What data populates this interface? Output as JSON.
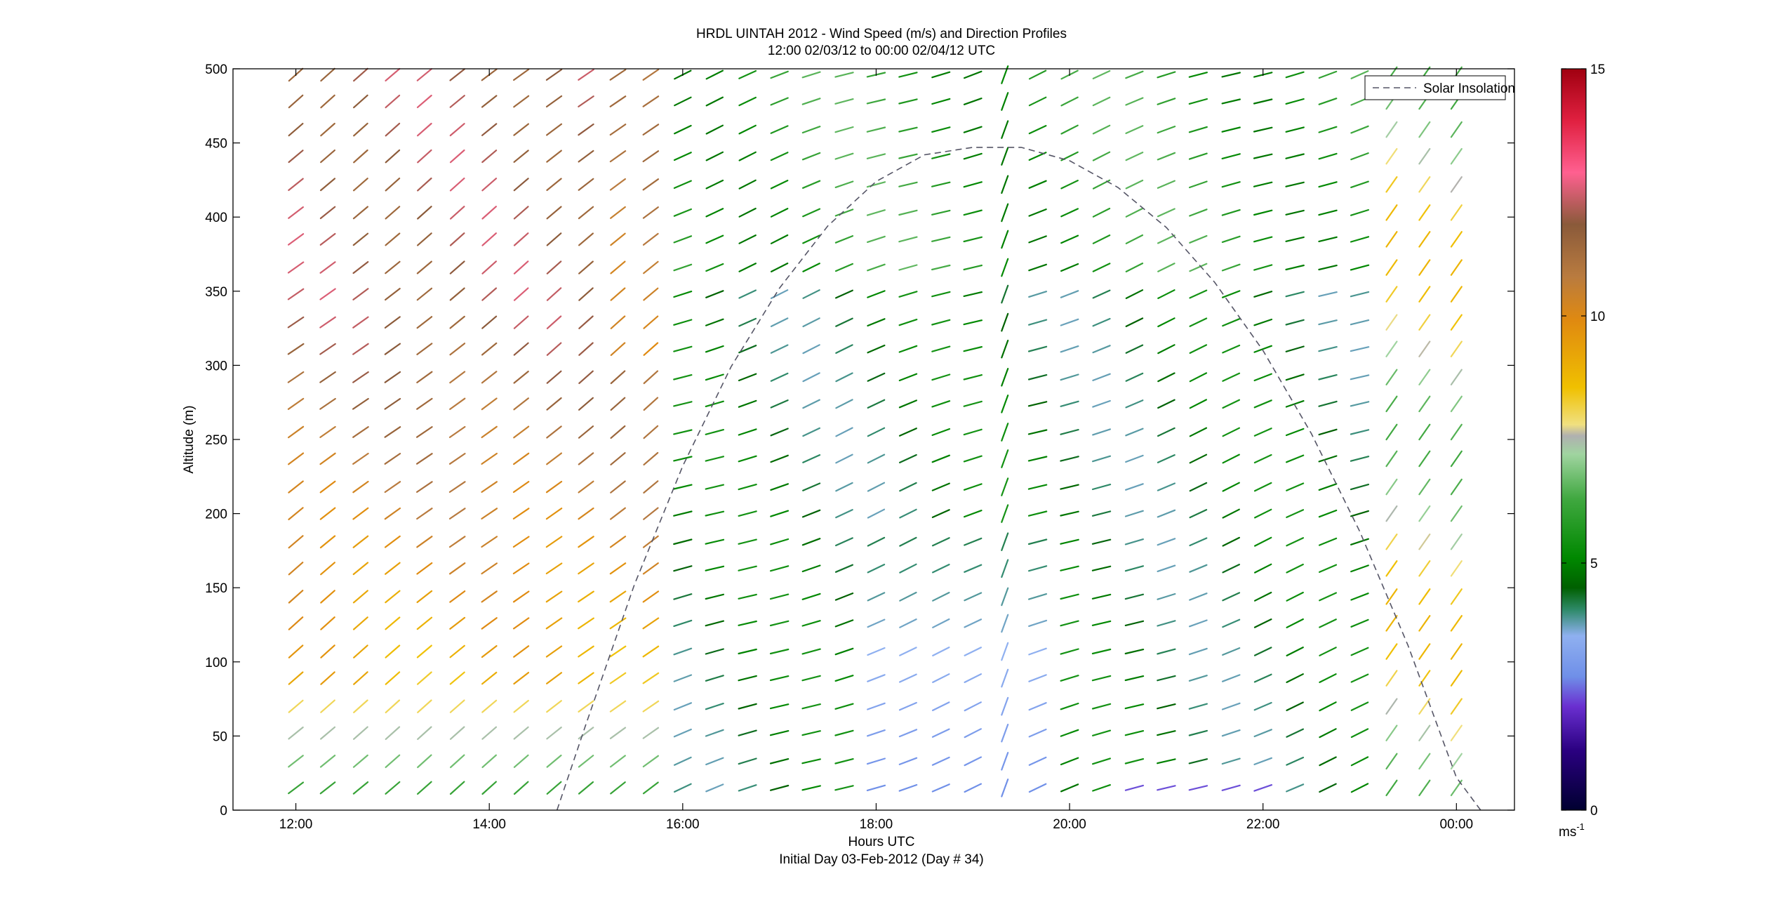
{
  "chart_data": {
    "type": "wind-profile",
    "title_line1": "HRDL UINTAH 2012 - Wind Speed (m/s) and Direction Profiles",
    "title_line2": "12:00 02/03/12 to 00:00 02/04/12  UTC",
    "xlabel": "Hours UTC",
    "xlabel_sub": "Initial Day 03-Feb-2012 (Day # 34)",
    "ylabel": "Altitude (m)",
    "x_ticks": [
      {
        "hour": 12,
        "label": "12:00"
      },
      {
        "hour": 14,
        "label": "14:00"
      },
      {
        "hour": 16,
        "label": "16:00"
      },
      {
        "hour": 18,
        "label": "18:00"
      },
      {
        "hour": 20,
        "label": "20:00"
      },
      {
        "hour": 22,
        "label": "22:00"
      },
      {
        "hour": 24,
        "label": "00:00"
      }
    ],
    "xlim_hours": [
      11.35,
      24.6
    ],
    "y_ticks": [
      0,
      50,
      100,
      150,
      200,
      250,
      300,
      350,
      400,
      450,
      500
    ],
    "ylim": [
      0,
      500
    ],
    "grid": false,
    "legend": {
      "position": "top-right",
      "entries": [
        "Solar Insolation"
      ]
    },
    "colorbar": {
      "min": 0,
      "max": 15,
      "ticks": [
        0,
        5,
        10,
        15
      ],
      "unit_label": "ms",
      "unit_superscript": "-1"
    },
    "profile_times_hours": [
      12.0,
      12.33,
      12.67,
      13.0,
      13.33,
      13.67,
      14.0,
      14.33,
      14.67,
      15.0,
      15.33,
      15.67,
      16.0,
      16.33,
      16.67,
      17.0,
      17.33,
      17.67,
      18.0,
      18.33,
      18.67,
      19.0,
      19.33,
      19.67,
      20.0,
      20.33,
      20.67,
      21.0,
      21.33,
      21.67,
      22.0,
      22.33,
      22.67,
      23.0,
      23.33,
      23.67,
      24.0
    ],
    "range_gates_m": [
      15,
      33,
      52,
      70,
      89,
      107,
      126,
      144,
      163,
      181,
      200,
      218,
      237,
      255,
      274,
      292,
      311,
      329,
      348,
      366,
      385,
      403,
      422,
      441,
      459,
      478,
      496
    ],
    "solar_insolation": {
      "style": "dashed",
      "x_hours": [
        14.7,
        15.0,
        15.5,
        16.0,
        16.5,
        17.0,
        17.5,
        18.0,
        18.5,
        19.0,
        19.5,
        20.0,
        20.5,
        21.0,
        21.5,
        22.0,
        22.5,
        23.0,
        23.5,
        24.0,
        24.25
      ],
      "y_altitude_m": [
        0,
        58,
        152,
        232,
        299,
        352,
        394,
        424,
        442,
        447,
        447,
        438,
        420,
        393,
        356,
        310,
        254,
        188,
        111,
        22,
        0
      ]
    }
  }
}
